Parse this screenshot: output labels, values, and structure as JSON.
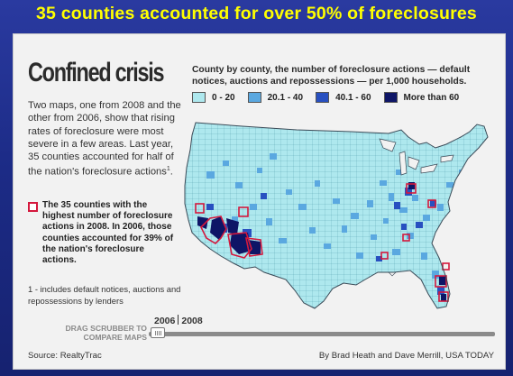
{
  "headline": "35 counties accounted for over 50% of foreclosures",
  "title": "Confined crisis",
  "intro": {
    "text": "Two maps, one from 2008 and the other from 2006, show that rising rates of foreclosure were most severe in a few areas. Last year, 35 counties accounted for half of the nation's foreclosure actions",
    "sup": "1"
  },
  "key_text": "The 35 counties with the highest number of foreclosure actions in 2008. In 2006, those counties accounted for 39% of the nation's foreclosure actions.",
  "footnote": "1 - includes default notices, auctions and repossessions by lenders",
  "legend": {
    "title": "County by county, the number of foreclosure actions — default notices, auctions and repossessions — per 1,000 households.",
    "items": [
      {
        "label": "0 - 20",
        "color": "#aee8ee"
      },
      {
        "label": "20.1 - 40",
        "color": "#5aa8e0"
      },
      {
        "label": "40.1 - 60",
        "color": "#2850c0"
      },
      {
        "label": "More than 60",
        "color": "#0e1566"
      }
    ]
  },
  "scrubber": {
    "label": "DRAG SCRUBBER TO COMPARE MAPS",
    "year_start": "2006",
    "year_end": "2008"
  },
  "source": "Source: RealtyTrac",
  "credit": "By Brad Heath and Dave Merrill, USA TODAY",
  "colors": {
    "background": "#1f2f8a",
    "headline": "#ffff00",
    "highlight": "#d4183d",
    "land": "#aee8ee"
  }
}
